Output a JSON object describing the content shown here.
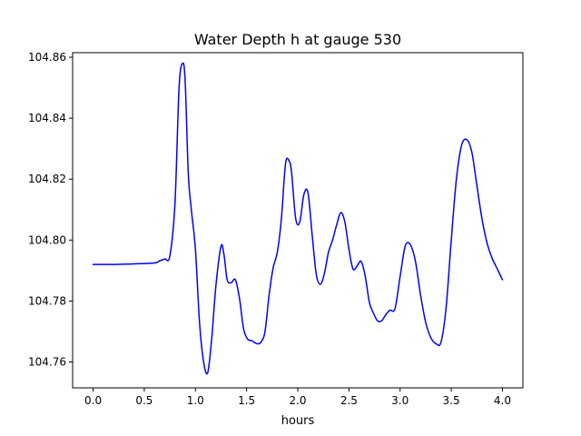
{
  "chart_data": {
    "type": "line",
    "title": "Water Depth h at gauge 530",
    "xlabel": "hours",
    "ylabel": "",
    "xlim": [
      -0.2,
      4.2
    ],
    "ylim": [
      104.7515,
      104.8615
    ],
    "x_ticks": [
      0.0,
      0.5,
      1.0,
      1.5,
      2.0,
      2.5,
      3.0,
      3.5,
      4.0
    ],
    "x_tick_labels": [
      "0.0",
      "0.5",
      "1.0",
      "1.5",
      "2.0",
      "2.5",
      "3.0",
      "3.5",
      "4.0"
    ],
    "y_ticks": [
      104.76,
      104.78,
      104.8,
      104.82,
      104.84,
      104.86
    ],
    "y_tick_labels": [
      "104.76",
      "104.78",
      "104.80",
      "104.82",
      "104.84",
      "104.86"
    ],
    "grid": false,
    "series": [
      {
        "color": "#0000ff",
        "x": [
          0.0,
          0.2,
          0.4,
          0.6,
          0.65,
          0.7,
          0.75,
          0.8,
          0.84,
          0.875,
          0.9,
          0.93,
          0.96,
          1.0,
          1.04,
          1.08,
          1.12,
          1.16,
          1.2,
          1.25,
          1.28,
          1.31,
          1.35,
          1.39,
          1.43,
          1.47,
          1.51,
          1.55,
          1.6,
          1.64,
          1.68,
          1.72,
          1.76,
          1.8,
          1.84,
          1.88,
          1.915,
          1.94,
          1.98,
          2.02,
          2.06,
          2.1,
          2.14,
          2.18,
          2.22,
          2.26,
          2.3,
          2.34,
          2.38,
          2.42,
          2.46,
          2.5,
          2.54,
          2.58,
          2.62,
          2.66,
          2.7,
          2.74,
          2.78,
          2.82,
          2.86,
          2.9,
          2.95,
          3.0,
          3.05,
          3.1,
          3.15,
          3.2,
          3.25,
          3.3,
          3.35,
          3.4,
          3.45,
          3.5,
          3.55,
          3.6,
          3.65,
          3.7,
          3.75,
          3.8,
          3.85,
          3.9,
          3.95,
          4.0
        ],
        "y": [
          104.792,
          104.792,
          104.7922,
          104.7925,
          104.7932,
          104.7938,
          104.7948,
          104.812,
          104.85,
          104.858,
          104.852,
          104.822,
          104.81,
          104.797,
          104.773,
          104.76,
          104.7565,
          104.768,
          104.785,
          104.798,
          104.795,
          104.787,
          104.786,
          104.787,
          104.781,
          104.771,
          104.7675,
          104.767,
          104.766,
          104.7665,
          104.77,
          104.782,
          104.791,
          104.796,
          104.807,
          104.825,
          104.826,
          104.822,
          104.807,
          104.806,
          104.815,
          104.8155,
          104.802,
          104.789,
          104.7855,
          104.789,
          104.796,
          104.8,
          104.805,
          104.809,
          104.806,
          104.797,
          104.7905,
          104.7915,
          104.793,
          104.788,
          104.7795,
          104.776,
          104.7735,
          104.7735,
          104.7755,
          104.777,
          104.7775,
          104.788,
          104.798,
          104.7985,
          104.793,
          104.782,
          104.773,
          104.768,
          104.766,
          104.7665,
          104.778,
          104.8,
          104.82,
          104.831,
          104.833,
          104.829,
          104.818,
          104.807,
          104.799,
          104.794,
          104.7905,
          104.787
        ]
      }
    ]
  }
}
